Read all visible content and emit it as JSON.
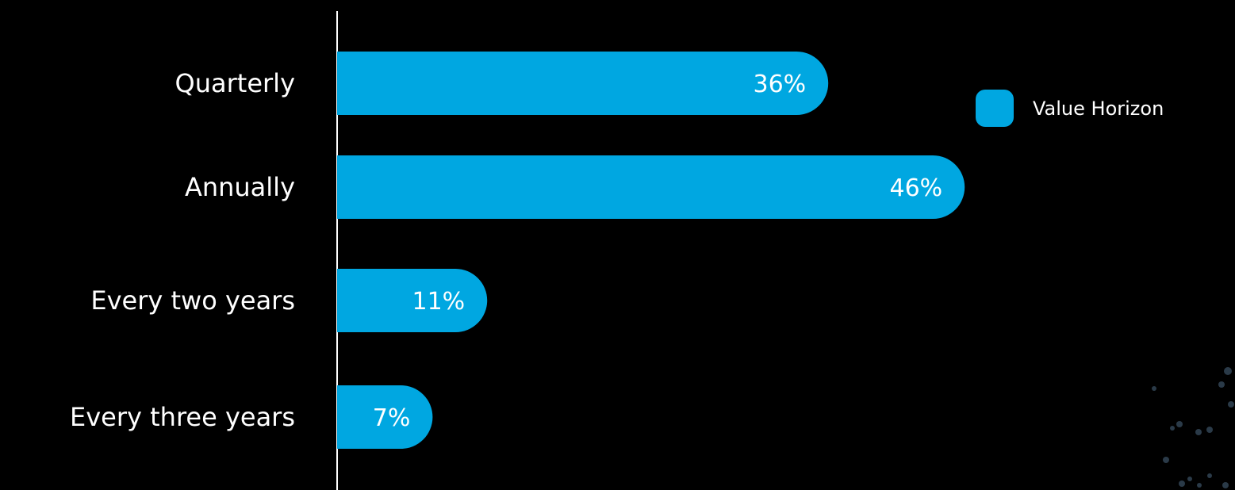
{
  "chart_data": {
    "type": "bar",
    "orientation": "horizontal",
    "categories": [
      "Quarterly",
      "Annually",
      "Every two years",
      "Every three years"
    ],
    "series": [
      {
        "name": "Value Horizon",
        "values": [
          36,
          46,
          11,
          7
        ],
        "value_labels": [
          "36%",
          "46%",
          "11%",
          "7%"
        ]
      }
    ],
    "xlim": [
      0,
      60
    ],
    "grid": false,
    "legend_position": "top-right"
  },
  "colors": {
    "background": "#000000",
    "bar": "#00a7e1",
    "text": "#ffffff",
    "axis": "#ffffff"
  }
}
